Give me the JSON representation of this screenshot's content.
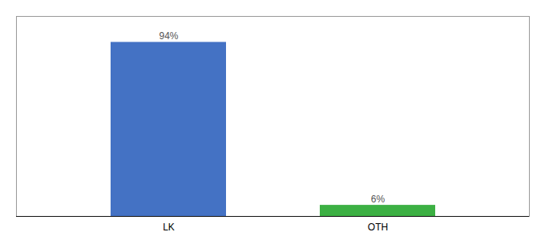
{
  "chart_data": {
    "type": "bar",
    "categories": [
      "LK",
      "OTH"
    ],
    "values": [
      94,
      6
    ],
    "value_labels": [
      "94%",
      "6%"
    ],
    "colors": [
      "#4472c4",
      "#3cb043"
    ],
    "ylim": [
      0,
      108
    ],
    "data_labels": true,
    "tick_labels": "x",
    "grid": false
  }
}
